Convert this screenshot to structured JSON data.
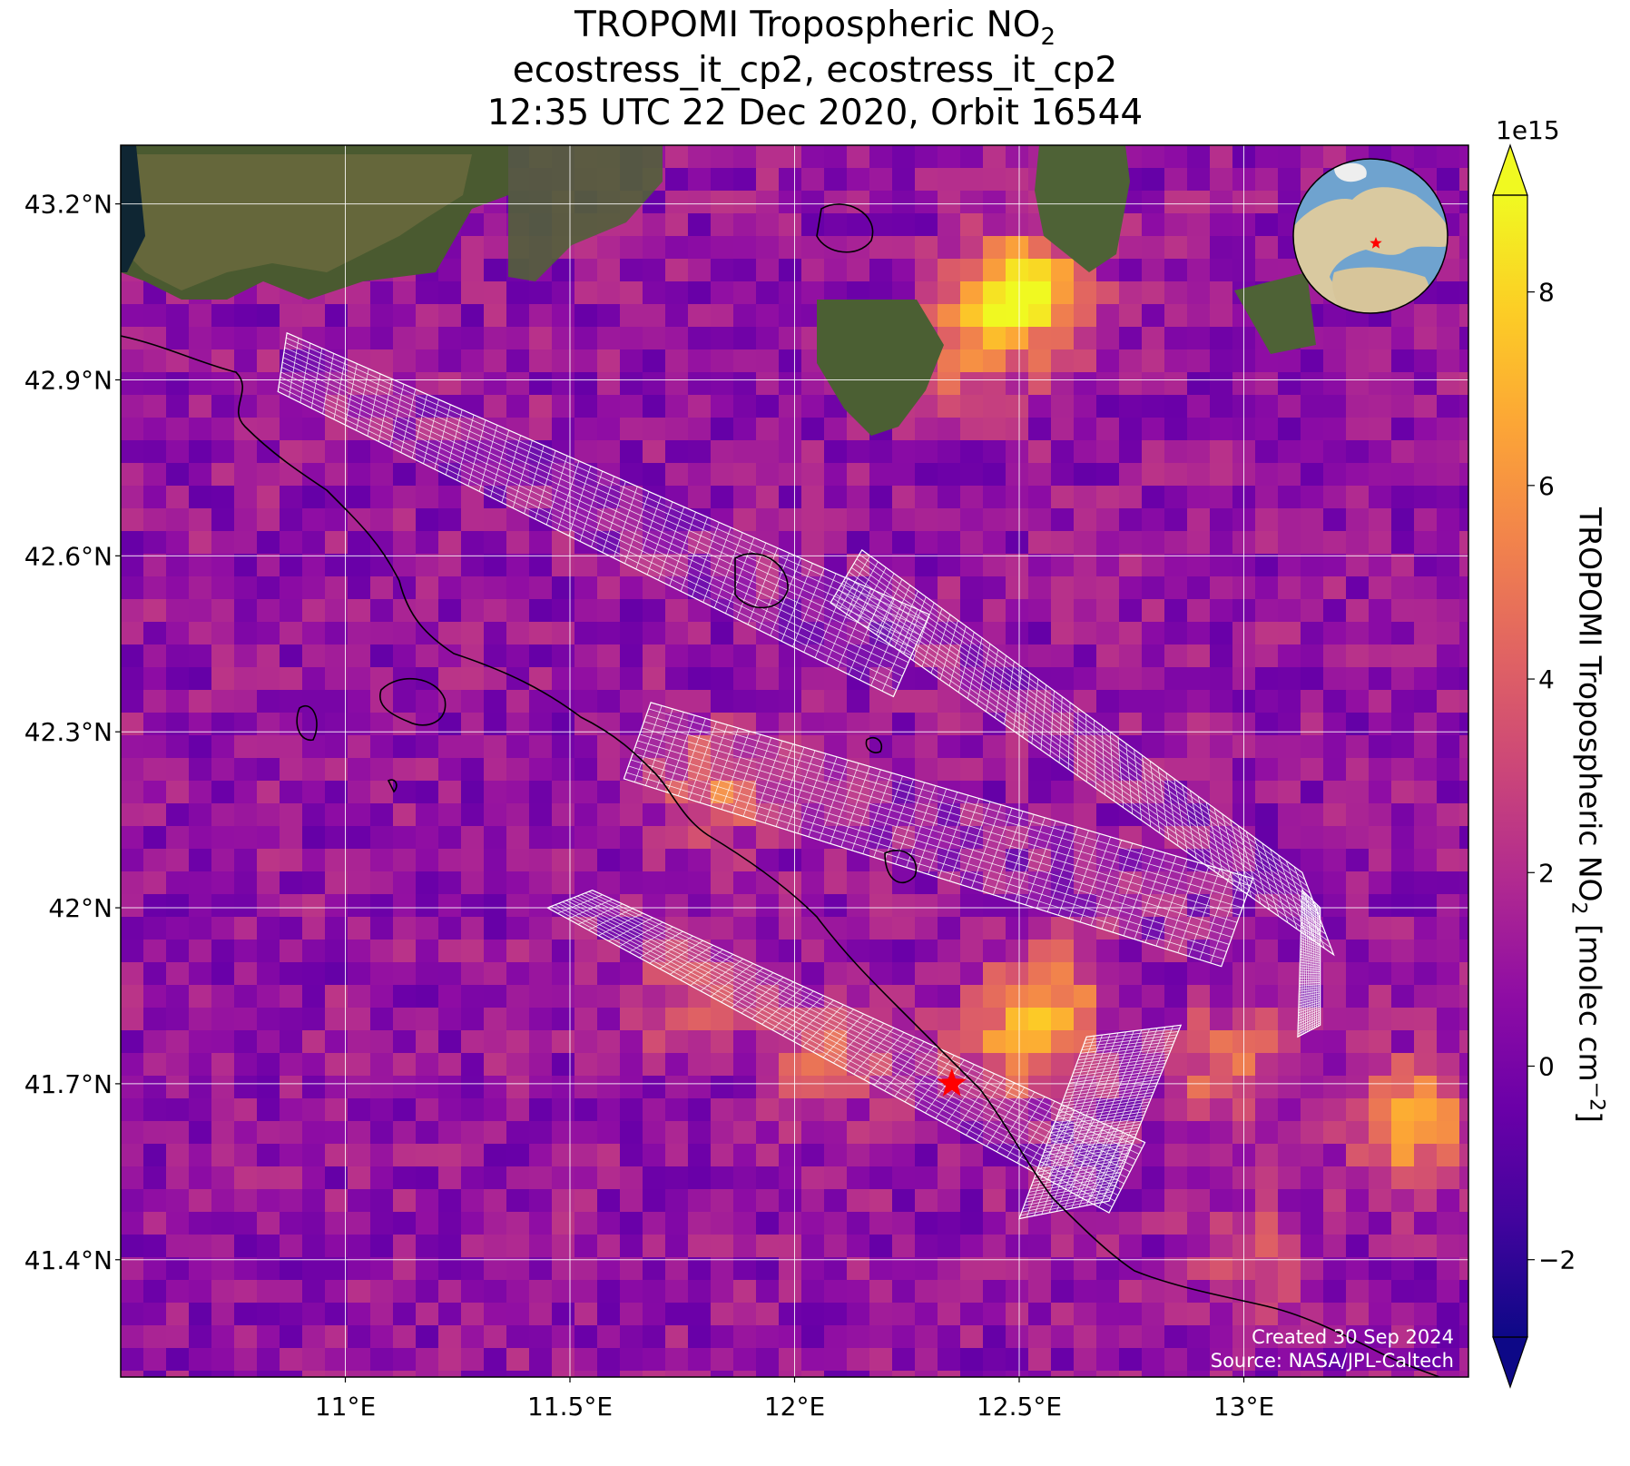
{
  "title": {
    "line1_prefix": "TROPOMI Tropospheric NO",
    "line1_sub": "2",
    "line2": "ecostress_it_cp2, ecostress_it_cp2",
    "line3": "12:35 UTC 22 Dec 2020, Orbit 16544"
  },
  "map": {
    "extent": {
      "lon_min": 10.5,
      "lon_max": 13.5,
      "lat_min": 41.2,
      "lat_max": 43.3
    },
    "lat_ticks": [
      {
        "value": 43.2,
        "label": "43.2°N"
      },
      {
        "value": 42.9,
        "label": "42.9°N"
      },
      {
        "value": 42.6,
        "label": "42.6°N"
      },
      {
        "value": 42.3,
        "label": "42.3°N"
      },
      {
        "value": 42.0,
        "label": "42°N"
      },
      {
        "value": 41.7,
        "label": "41.7°N"
      },
      {
        "value": 41.4,
        "label": "41.4°N"
      }
    ],
    "lon_ticks": [
      {
        "value": 11.0,
        "label": "11°E"
      },
      {
        "value": 11.5,
        "label": "11.5°E"
      },
      {
        "value": 12.0,
        "label": "12°E"
      },
      {
        "value": 12.5,
        "label": "12.5°E"
      },
      {
        "value": 13.0,
        "label": "13°E"
      }
    ],
    "gridlines": true,
    "site_marker": {
      "lon": 12.35,
      "lat": 41.7,
      "symbol": "star",
      "color": "#ff0000"
    },
    "locator_globe": {
      "position": "top-right",
      "ocean_color": "#6fa3cf",
      "land_color": "#d9c9a0"
    },
    "credits": {
      "line1": "Created 30 Sep 2024",
      "line2": "Source: NASA/JPL-Caltech"
    },
    "no2_hotspots": [
      {
        "lon": 12.5,
        "lat": 43.07,
        "value": 8.5
      },
      {
        "lon": 12.37,
        "lat": 42.98,
        "value": 5.5
      },
      {
        "lon": 12.45,
        "lat": 41.78,
        "value": 5.0
      },
      {
        "lon": 12.05,
        "lat": 41.77,
        "value": 4.5
      },
      {
        "lon": 12.55,
        "lat": 41.87,
        "value": 5.0
      },
      {
        "lon": 11.75,
        "lat": 41.87,
        "value": 4.0
      },
      {
        "lon": 13.35,
        "lat": 41.65,
        "value": 6.5
      },
      {
        "lon": 12.95,
        "lat": 41.75,
        "value": 5.0
      },
      {
        "lon": 11.8,
        "lat": 42.22,
        "value": 4.5
      },
      {
        "lon": 13.0,
        "lat": 41.42,
        "value": 3.5
      }
    ],
    "ecostress_swaths": [
      {
        "name": "swath-1",
        "corners": [
          [
            10.87,
            42.98
          ],
          [
            10.85,
            42.88
          ],
          [
            12.22,
            42.36
          ],
          [
            12.3,
            42.5
          ]
        ]
      },
      {
        "name": "swath-2",
        "corners": [
          [
            12.15,
            42.61
          ],
          [
            12.08,
            42.52
          ],
          [
            13.2,
            41.92
          ],
          [
            13.13,
            42.06
          ]
        ]
      },
      {
        "name": "swath-3",
        "corners": [
          [
            11.68,
            42.35
          ],
          [
            11.62,
            42.22
          ],
          [
            12.95,
            41.9
          ],
          [
            13.02,
            42.05
          ]
        ]
      },
      {
        "name": "swath-4",
        "corners": [
          [
            11.45,
            42.0
          ],
          [
            11.55,
            42.03
          ],
          [
            12.78,
            41.6
          ],
          [
            12.7,
            41.48
          ]
        ]
      },
      {
        "name": "swath-5",
        "corners": [
          [
            12.65,
            41.78
          ],
          [
            12.86,
            41.8
          ],
          [
            12.7,
            41.5
          ],
          [
            12.5,
            41.47
          ]
        ]
      },
      {
        "name": "swath-6",
        "corners": [
          [
            13.13,
            42.03
          ],
          [
            13.17,
            42.0
          ],
          [
            13.17,
            41.8
          ],
          [
            13.12,
            41.78
          ]
        ]
      }
    ]
  },
  "colorbar": {
    "label_prefix": "TROPOMI Tropospheric NO",
    "label_sub": "2",
    "label_suffix": " [molec cm",
    "label_sup": "−2",
    "label_end": "]",
    "scale_label": "1e15",
    "vmin": -2.8,
    "vmax": 9.0,
    "extend": "both",
    "colormap": "plasma",
    "ticks": [
      {
        "value": -2,
        "label": "−2"
      },
      {
        "value": 0,
        "label": "0"
      },
      {
        "value": 2,
        "label": "2"
      },
      {
        "value": 4,
        "label": "4"
      },
      {
        "value": 6,
        "label": "6"
      },
      {
        "value": 8,
        "label": "8"
      }
    ]
  }
}
